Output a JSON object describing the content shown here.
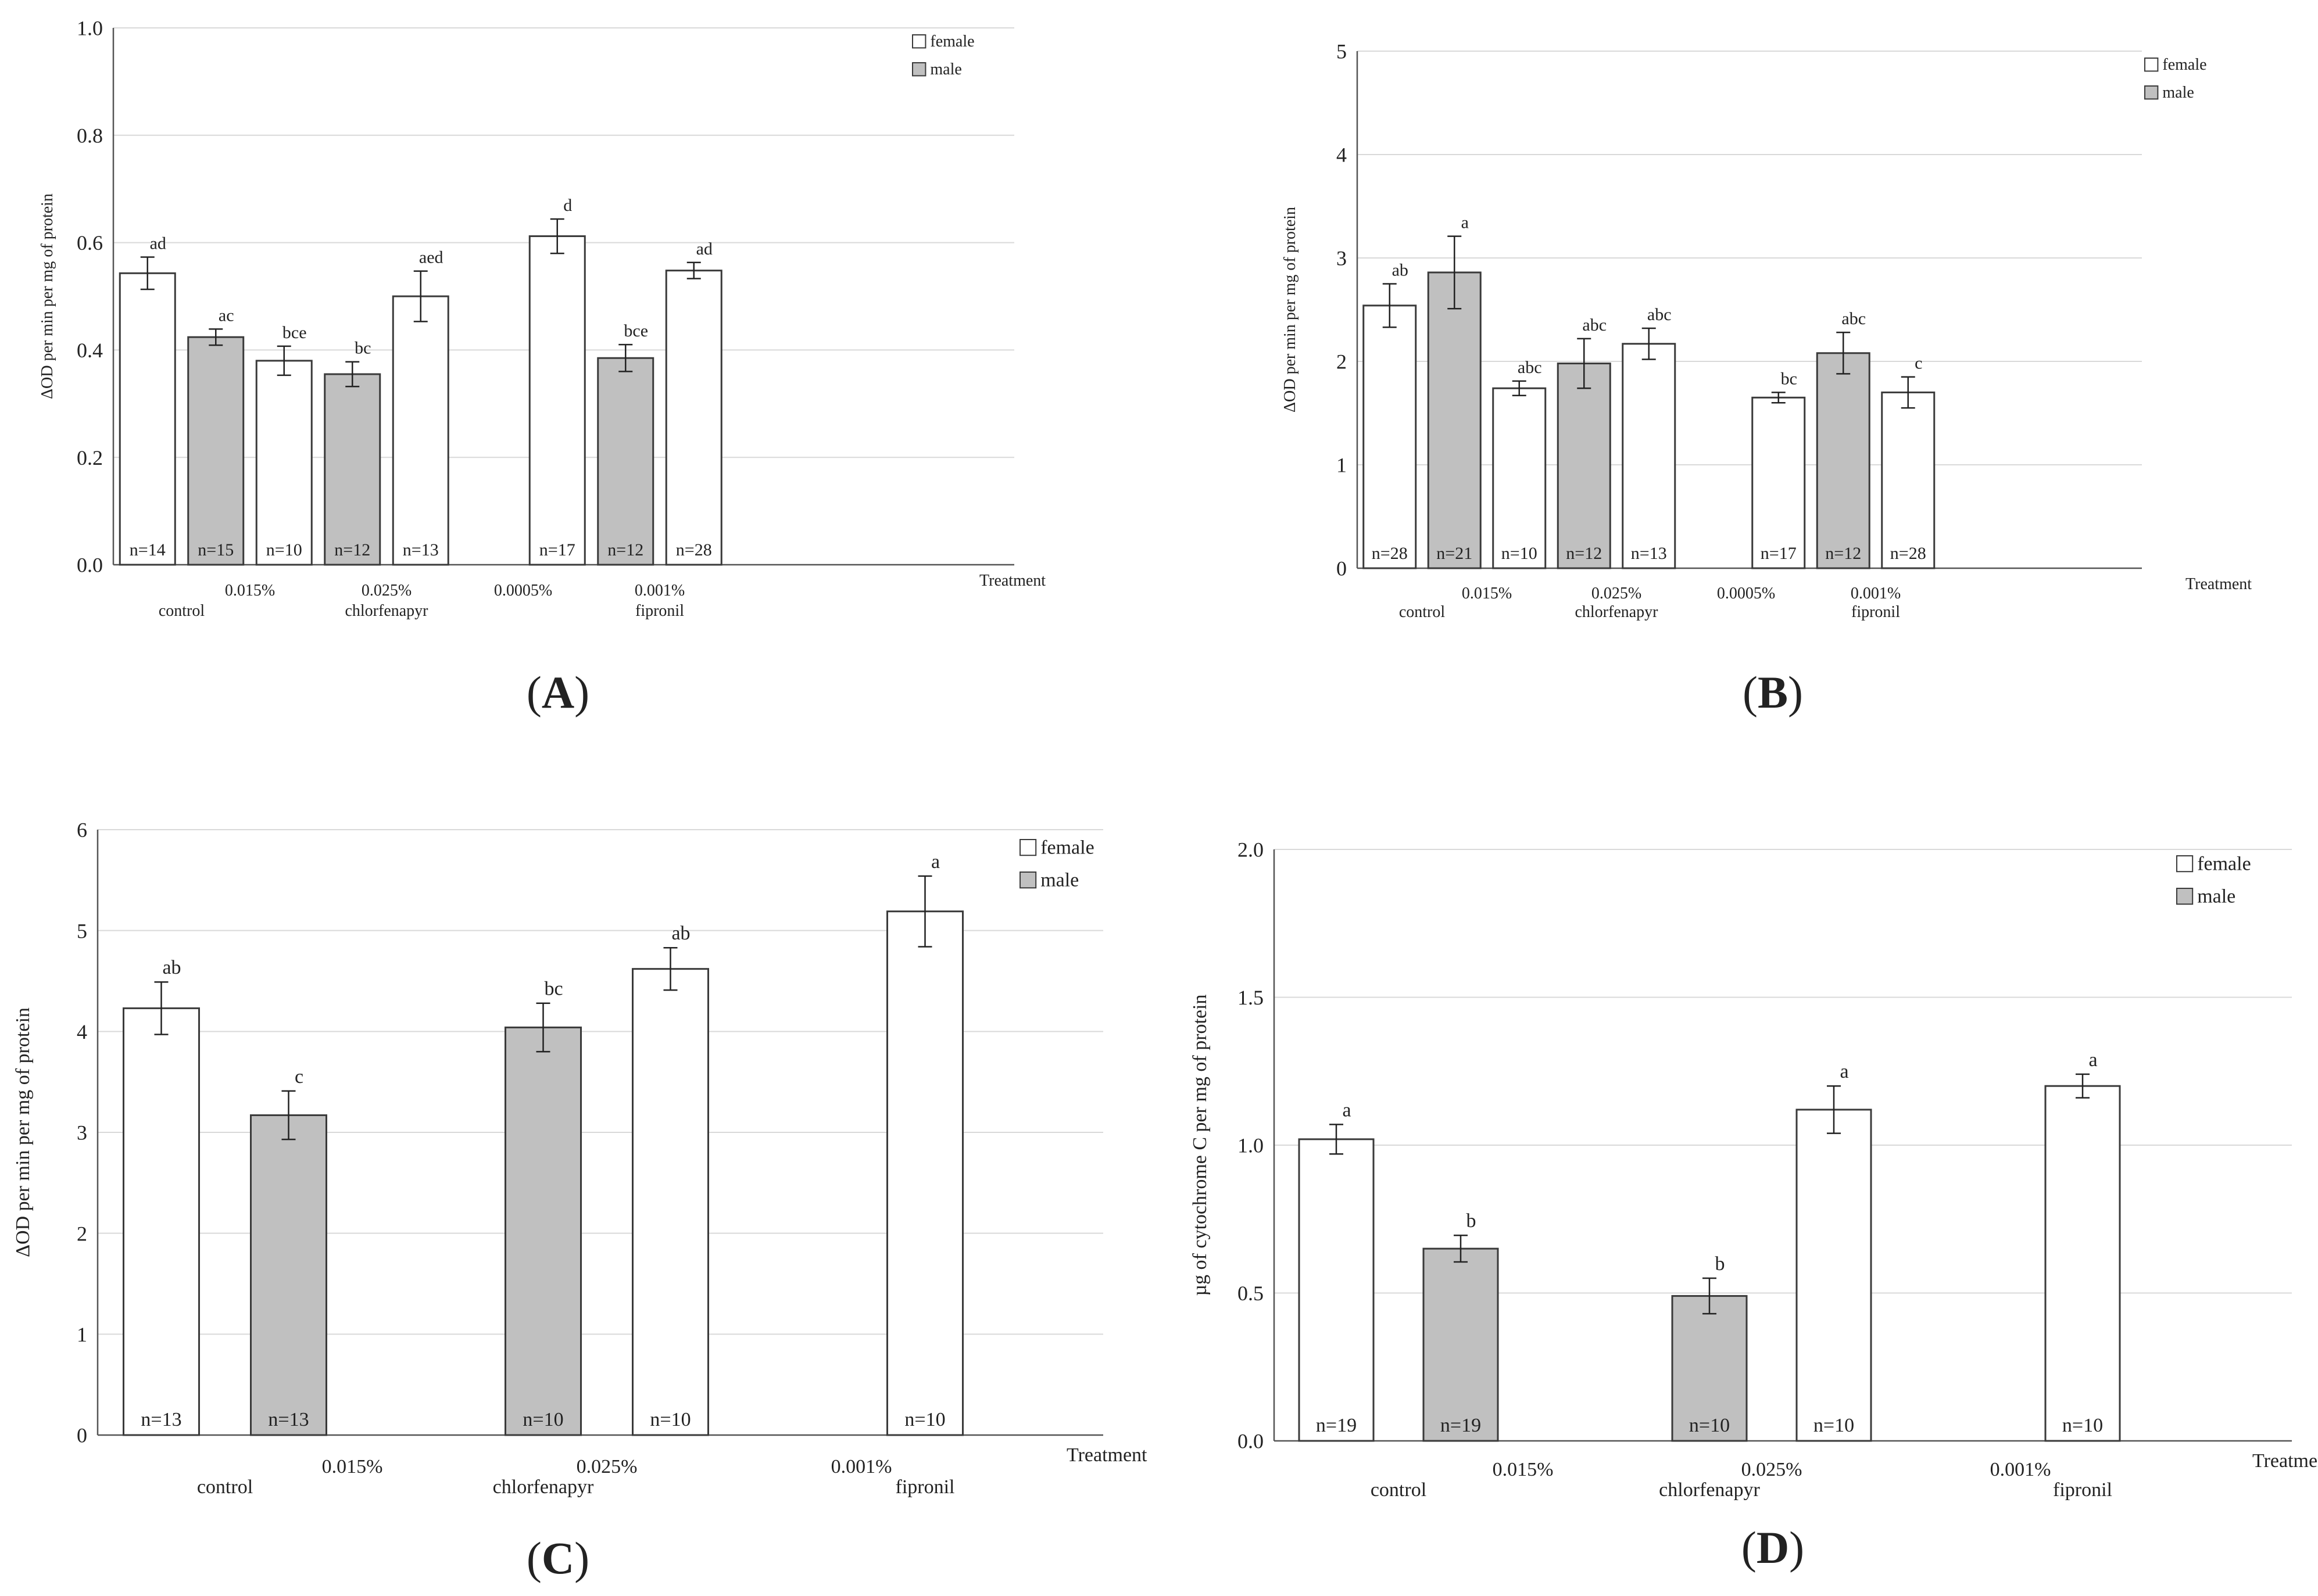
{
  "figure": {
    "panel_labels": [
      "A",
      "B",
      "C",
      "D"
    ]
  },
  "colors": {
    "female": "#ffffff",
    "male": "#c0c0c0",
    "outline": "#3a3a3a",
    "grid": "#d9d9d9",
    "axis": "#555555"
  },
  "chart_data": [
    {
      "panel": "A",
      "type": "bar",
      "ylabel": "ΔOD per min per mg of protein",
      "xlabel": "Treatment",
      "ylim": [
        0,
        1.0
      ],
      "yticks": [
        "0.0",
        "0.2",
        "0.4",
        "0.6",
        "0.8",
        "1.0"
      ],
      "grid": true,
      "legend": {
        "position": "top-right",
        "entries": [
          "female",
          "male"
        ]
      },
      "slot_labels": [
        "",
        "",
        "0.015%",
        "",
        "0.025%",
        "",
        "0.0005%",
        "",
        "0.001%",
        ""
      ],
      "group_labels": [
        {
          "text": "control",
          "slot": 0.5
        },
        {
          "text": "chlorfenapyr",
          "slot": 3.5
        },
        {
          "text": "fipronil",
          "slot": 7.5
        }
      ],
      "bars": [
        {
          "slot": 0,
          "sex": "female",
          "value": 0.543,
          "err": 0.03,
          "sig": "ad",
          "n": "n=14"
        },
        {
          "slot": 1,
          "sex": "male",
          "value": 0.424,
          "err": 0.015,
          "sig": "ac",
          "n": "n=15"
        },
        {
          "slot": 2,
          "sex": "female",
          "value": 0.38,
          "err": 0.027,
          "sig": "bce",
          "n": "n=10"
        },
        {
          "slot": 3,
          "sex": "male",
          "value": 0.355,
          "err": 0.023,
          "sig": "bc",
          "n": "n=12"
        },
        {
          "slot": 4,
          "sex": "female",
          "value": 0.5,
          "err": 0.047,
          "sig": "aed",
          "n": "n=13"
        },
        {
          "slot": 6,
          "sex": "female",
          "value": 0.612,
          "err": 0.032,
          "sig": "d",
          "n": "n=17"
        },
        {
          "slot": 7,
          "sex": "male",
          "value": 0.385,
          "err": 0.025,
          "sig": "bce",
          "n": "n=12"
        },
        {
          "slot": 8,
          "sex": "female",
          "value": 0.548,
          "err": 0.015,
          "sig": "ad",
          "n": "n=28"
        }
      ]
    },
    {
      "panel": "B",
      "type": "bar",
      "ylabel": "ΔOD per min per mg of protein",
      "xlabel": "Treatment",
      "ylim": [
        0,
        5
      ],
      "yticks": [
        "0",
        "1",
        "2",
        "3",
        "4",
        "5"
      ],
      "grid": true,
      "legend": {
        "position": "top-right",
        "entries": [
          "female",
          "male"
        ]
      },
      "slot_labels": [
        "",
        "",
        "0.015%",
        "",
        "0.025%",
        "",
        "0.0005%",
        "",
        "0.001%",
        ""
      ],
      "group_labels": [
        {
          "text": "control",
          "slot": 0.5
        },
        {
          "text": "chlorfenapyr",
          "slot": 3.5
        },
        {
          "text": "fipronil",
          "slot": 7.5
        }
      ],
      "bars": [
        {
          "slot": 0,
          "sex": "female",
          "value": 2.54,
          "err": 0.21,
          "sig": "ab",
          "n": "n=28"
        },
        {
          "slot": 1,
          "sex": "male",
          "value": 2.86,
          "err": 0.35,
          "sig": "a",
          "n": "n=21"
        },
        {
          "slot": 2,
          "sex": "female",
          "value": 1.74,
          "err": 0.07,
          "sig": "abc",
          "n": "n=10"
        },
        {
          "slot": 3,
          "sex": "male",
          "value": 1.98,
          "err": 0.24,
          "sig": "abc",
          "n": "n=12"
        },
        {
          "slot": 4,
          "sex": "female",
          "value": 2.17,
          "err": 0.15,
          "sig": "abc",
          "n": "n=13"
        },
        {
          "slot": 6,
          "sex": "female",
          "value": 1.65,
          "err": 0.05,
          "sig": "bc",
          "n": "n=17"
        },
        {
          "slot": 7,
          "sex": "male",
          "value": 2.08,
          "err": 0.2,
          "sig": "abc",
          "n": "n=12"
        },
        {
          "slot": 8,
          "sex": "female",
          "value": 1.7,
          "err": 0.15,
          "sig": "c",
          "n": "n=28"
        }
      ]
    },
    {
      "panel": "C",
      "type": "bar",
      "ylabel": "ΔOD per min per mg of protein",
      "xlabel": "Treatment",
      "ylim": [
        0,
        6
      ],
      "yticks": [
        "0",
        "1",
        "2",
        "3",
        "4",
        "5",
        "6"
      ],
      "grid": true,
      "legend": {
        "position": "top-right",
        "entries": [
          "female",
          "male"
        ]
      },
      "slot_labels": [
        "",
        "",
        "0.015%",
        "",
        "0.025%",
        "",
        "0.001%",
        ""
      ],
      "group_labels": [
        {
          "text": "control",
          "slot": 0.5
        },
        {
          "text": "chlorfenapyr",
          "slot": 3
        },
        {
          "text": "fipronil",
          "slot": 6
        }
      ],
      "bars": [
        {
          "slot": 0,
          "sex": "female",
          "value": 4.23,
          "err": 0.26,
          "sig": "ab",
          "n": "n=13"
        },
        {
          "slot": 1,
          "sex": "male",
          "value": 3.17,
          "err": 0.24,
          "sig": "c",
          "n": "n=13"
        },
        {
          "slot": 3,
          "sex": "male",
          "value": 4.04,
          "err": 0.24,
          "sig": "bc",
          "n": "n=10"
        },
        {
          "slot": 4,
          "sex": "female",
          "value": 4.62,
          "err": 0.21,
          "sig": "ab",
          "n": "n=10"
        },
        {
          "slot": 6,
          "sex": "female",
          "value": 5.19,
          "err": 0.35,
          "sig": "a",
          "n": "n=10"
        }
      ]
    },
    {
      "panel": "D",
      "type": "bar",
      "ylabel": "µg of cytochrome C per mg of protein",
      "xlabel": "Treatment",
      "ylim": [
        0,
        2.0
      ],
      "yticks": [
        "0.0",
        "0.5",
        "1.0",
        "1.5",
        "2.0"
      ],
      "grid": true,
      "legend": {
        "position": "top-right",
        "entries": [
          "female",
          "male"
        ]
      },
      "slot_labels": [
        "",
        "",
        "0.015%",
        "",
        "0.025%",
        "",
        "0.001%",
        ""
      ],
      "group_labels": [
        {
          "text": "control",
          "slot": 0.5
        },
        {
          "text": "chlorfenapyr",
          "slot": 3
        },
        {
          "text": "fipronil",
          "slot": 6
        }
      ],
      "bars": [
        {
          "slot": 0,
          "sex": "female",
          "value": 1.02,
          "err": 0.05,
          "sig": "a",
          "n": "n=19"
        },
        {
          "slot": 1,
          "sex": "male",
          "value": 0.65,
          "err": 0.045,
          "sig": "b",
          "n": "n=19"
        },
        {
          "slot": 3,
          "sex": "male",
          "value": 0.49,
          "err": 0.06,
          "sig": "b",
          "n": "n=10"
        },
        {
          "slot": 4,
          "sex": "female",
          "value": 1.12,
          "err": 0.08,
          "sig": "a",
          "n": "n=10"
        },
        {
          "slot": 6,
          "sex": "female",
          "value": 1.2,
          "err": 0.04,
          "sig": "a",
          "n": "n=10"
        }
      ]
    }
  ]
}
